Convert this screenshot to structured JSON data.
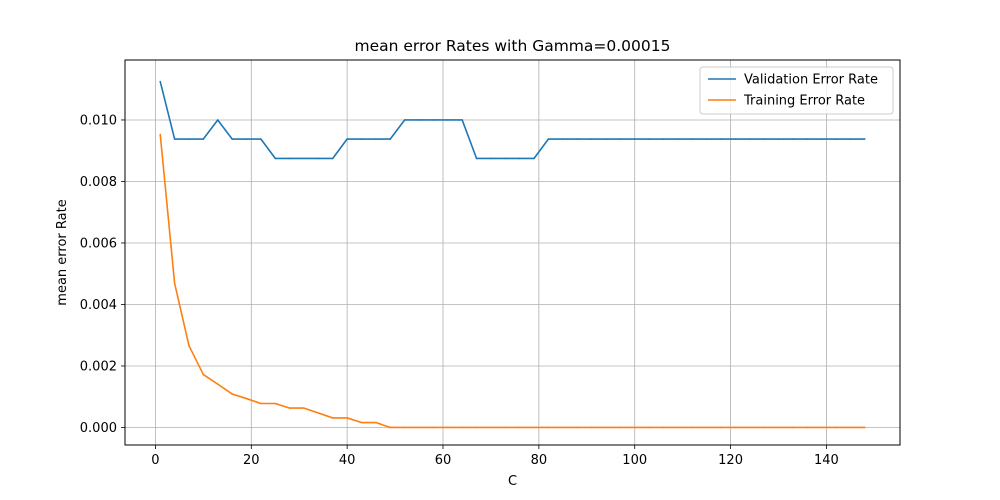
{
  "chart_data": {
    "type": "line",
    "title": "mean error Rates with Gamma=0.00015",
    "xlabel": "C",
    "ylabel": "mean error Rate",
    "xlim": [
      -6.35,
      155.35
    ],
    "ylim": [
      -0.00057,
      0.01195
    ],
    "x_ticks": [
      0,
      20,
      40,
      60,
      80,
      100,
      120,
      140
    ],
    "y_ticks": [
      0.0,
      0.002,
      0.004,
      0.006,
      0.008,
      0.01
    ],
    "y_tick_labels": [
      "0.000",
      "0.002",
      "0.004",
      "0.006",
      "0.008",
      "0.010"
    ],
    "grid": true,
    "legend_position": "top-right",
    "x": [
      1,
      4,
      7,
      10,
      13,
      16,
      19,
      22,
      25,
      28,
      31,
      34,
      37,
      40,
      43,
      46,
      49,
      52,
      55,
      58,
      61,
      64,
      67,
      70,
      73,
      76,
      79,
      82,
      85,
      88,
      91,
      94,
      97,
      100,
      103,
      106,
      109,
      112,
      115,
      118,
      121,
      124,
      127,
      130,
      133,
      136,
      139,
      142,
      145,
      148
    ],
    "series": [
      {
        "name": "Validation Error Rate",
        "color": "#1f77b4",
        "values": [
          0.01125,
          0.00938,
          0.00938,
          0.00938,
          0.01,
          0.00938,
          0.00938,
          0.00938,
          0.00875,
          0.00875,
          0.00875,
          0.00875,
          0.00875,
          0.00938,
          0.00938,
          0.00938,
          0.00938,
          0.01,
          0.01,
          0.01,
          0.01,
          0.01,
          0.00875,
          0.00875,
          0.00875,
          0.00875,
          0.00875,
          0.00938,
          0.00938,
          0.00938,
          0.00938,
          0.00938,
          0.00938,
          0.00938,
          0.00938,
          0.00938,
          0.00938,
          0.00938,
          0.00938,
          0.00938,
          0.00938,
          0.00938,
          0.00938,
          0.00938,
          0.00938,
          0.00938,
          0.00938,
          0.00938,
          0.00938,
          0.00938
        ]
      },
      {
        "name": "Training Error Rate",
        "color": "#ff7f0e",
        "values": [
          0.00953,
          0.00469,
          0.00266,
          0.00172,
          0.00141,
          0.00109,
          0.00094,
          0.00078,
          0.00078,
          0.00063,
          0.00063,
          0.00047,
          0.00031,
          0.00031,
          0.00016,
          0.00016,
          0.0,
          0.0,
          0.0,
          0.0,
          0.0,
          0.0,
          0.0,
          0.0,
          0.0,
          0.0,
          0.0,
          0.0,
          0.0,
          0.0,
          0.0,
          0.0,
          0.0,
          0.0,
          0.0,
          0.0,
          0.0,
          0.0,
          0.0,
          0.0,
          0.0,
          0.0,
          0.0,
          0.0,
          0.0,
          0.0,
          0.0,
          0.0,
          0.0,
          0.0
        ]
      }
    ]
  }
}
